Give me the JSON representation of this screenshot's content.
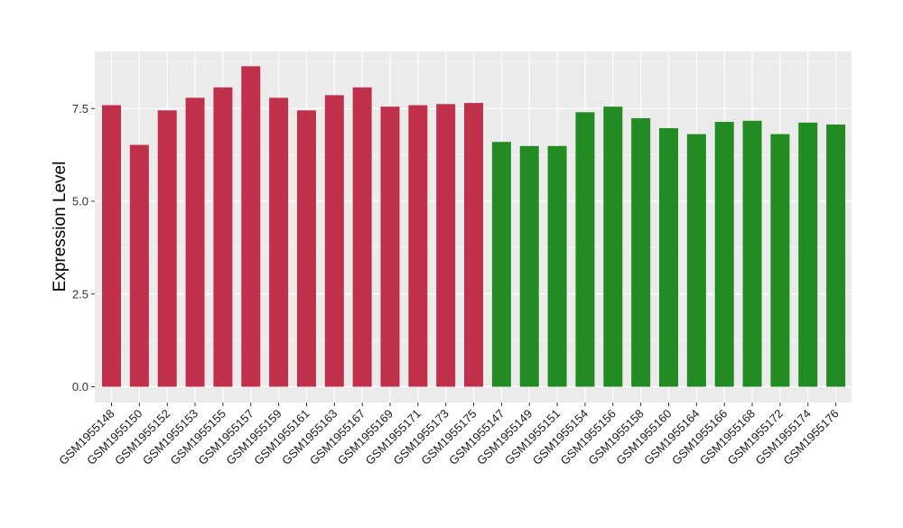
{
  "chart_data": {
    "type": "bar",
    "title": "",
    "xlabel": "",
    "ylabel": "Expression Level",
    "ylim": [
      0,
      8.9
    ],
    "yticks": [
      0.0,
      2.5,
      5.0,
      7.5
    ],
    "ytick_labels": [
      "0.0",
      "2.5",
      "5.0",
      "7.5"
    ],
    "grid": true,
    "legend": "none",
    "colors": {
      "group1": "#C0304A",
      "group2": "#228B22",
      "panel": "#EBEBEB",
      "grid": "#FFFFFF"
    },
    "categories": [
      "GSM1955148",
      "GSM1955150",
      "GSM1955152",
      "GSM1955153",
      "GSM1955155",
      "GSM1955157",
      "GSM1955159",
      "GSM1955161",
      "GSM1955163",
      "GSM1955167",
      "GSM1955169",
      "GSM1955171",
      "GSM1955173",
      "GSM1955175",
      "GSM1955147",
      "GSM1955149",
      "GSM1955151",
      "GSM1955154",
      "GSM1955156",
      "GSM1955158",
      "GSM1955160",
      "GSM1955164",
      "GSM1955166",
      "GSM1955168",
      "GSM1955172",
      "GSM1955174",
      "GSM1955176"
    ],
    "values": [
      7.59,
      6.52,
      7.45,
      7.79,
      8.07,
      8.64,
      7.79,
      7.45,
      7.86,
      8.07,
      7.55,
      7.59,
      7.62,
      7.65,
      6.6,
      6.49,
      6.49,
      7.4,
      7.55,
      7.24,
      6.97,
      6.81,
      7.14,
      7.17,
      6.81,
      7.12,
      7.07
    ],
    "groups": [
      1,
      1,
      1,
      1,
      1,
      1,
      1,
      1,
      1,
      1,
      1,
      1,
      1,
      1,
      2,
      2,
      2,
      2,
      2,
      2,
      2,
      2,
      2,
      2,
      2,
      2,
      2
    ]
  }
}
